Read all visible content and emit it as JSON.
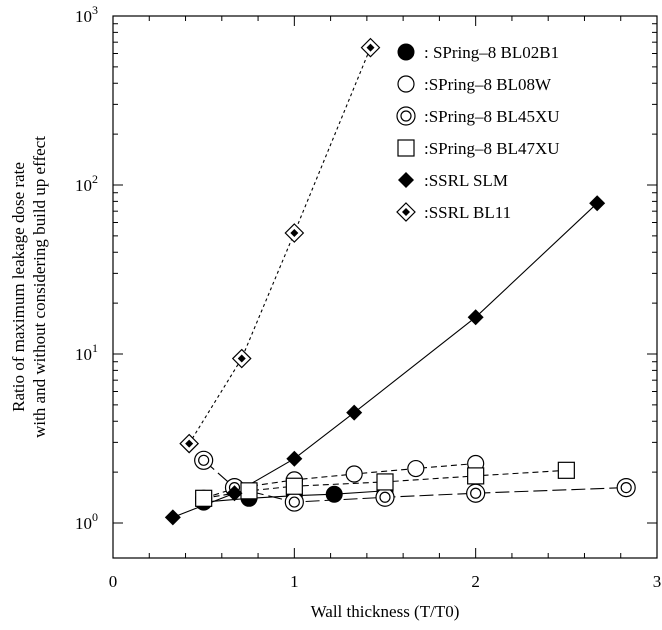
{
  "chart_data": {
    "type": "line",
    "title": "",
    "xlabel": "Wall thickness (T/T0)",
    "ylabel_lines": [
      "Ratio of maximum leakage dose rate",
      "with and without considering build up effect"
    ],
    "x_scale": "linear",
    "y_scale": "log",
    "xlim": [
      0,
      3
    ],
    "ylim": [
      1,
      1000
    ],
    "x_ticks": [
      0,
      1,
      2,
      3
    ],
    "x_tick_labels": [
      "0",
      "1",
      "2",
      "3"
    ],
    "y_ticks": [
      1,
      10,
      100,
      1000
    ],
    "y_tick_labels": [
      {
        "base": "10",
        "exp": "0"
      },
      {
        "base": "10",
        "exp": "1"
      },
      {
        "base": "10",
        "exp": "2"
      },
      {
        "base": "10",
        "exp": "3"
      }
    ],
    "grid": false,
    "legend_position": "top-right",
    "series": [
      {
        "name": ": SPring–8 BL02B1",
        "marker": "filled-circle",
        "line": "solid",
        "x": [
          0.5,
          0.75,
          1.0,
          1.22,
          1.5
        ],
        "y": [
          1.33,
          1.4,
          1.45,
          1.48,
          1.55
        ]
      },
      {
        "name": ":SPring–8 BL08W",
        "marker": "open-circle",
        "line": "dash",
        "x": [
          0.5,
          0.67,
          1.0,
          1.33,
          1.67,
          2.0
        ],
        "y": [
          1.4,
          1.6,
          1.8,
          1.95,
          2.1,
          2.25
        ]
      },
      {
        "name": ":SPring–8 BL45XU",
        "marker": "double-circle",
        "line": "longdash",
        "x": [
          0.5,
          0.67,
          1.0,
          1.5,
          2.0,
          2.83
        ],
        "y": [
          2.35,
          1.62,
          1.33,
          1.42,
          1.5,
          1.62
        ]
      },
      {
        "name": ":SPring–8 BL47XU",
        "marker": "open-square",
        "line": "dash",
        "x": [
          0.5,
          0.75,
          1.0,
          1.5,
          2.0,
          2.5
        ],
        "y": [
          1.4,
          1.55,
          1.65,
          1.75,
          1.9,
          2.05
        ]
      },
      {
        "name": ":SSRL SLM",
        "marker": "filled-diamond",
        "line": "solid",
        "x": [
          0.33,
          0.67,
          1.0,
          1.33,
          2.0,
          2.67
        ],
        "y": [
          1.08,
          1.5,
          2.4,
          4.5,
          16.5,
          78
        ]
      },
      {
        "name": ":SSRL BL11",
        "marker": "dotted-diamond",
        "line": "dotted",
        "x": [
          0.42,
          0.71,
          1.0,
          1.42
        ],
        "y": [
          2.95,
          9.4,
          52,
          650
        ]
      }
    ]
  }
}
